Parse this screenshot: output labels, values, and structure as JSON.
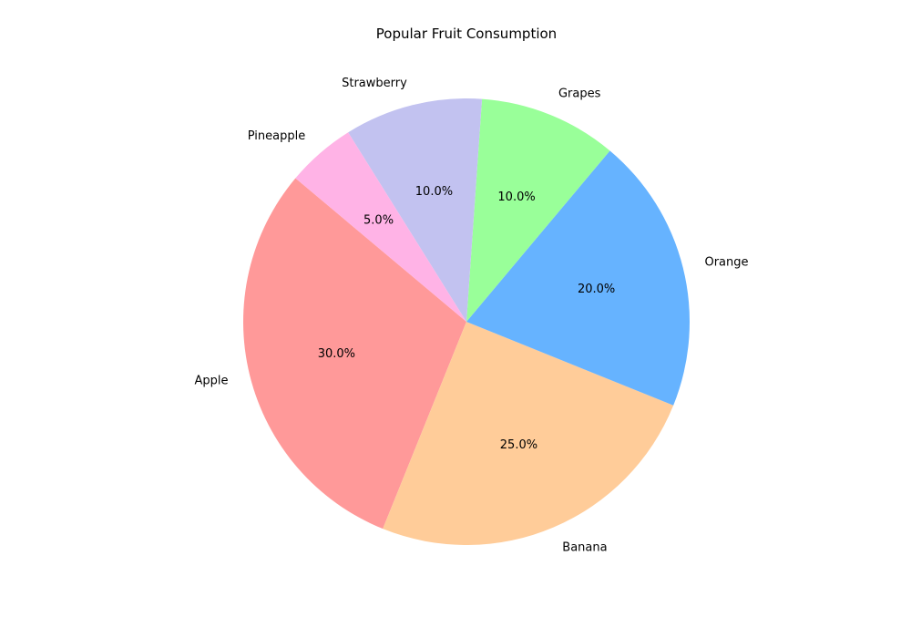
{
  "chart_data": {
    "type": "pie",
    "title": "Popular Fruit Consumption",
    "slices": [
      {
        "label": "Apple",
        "value": 30,
        "pct_label": "30.0%",
        "color": "#ff9999"
      },
      {
        "label": "Banana",
        "value": 25,
        "pct_label": "25.0%",
        "color": "#ffcc99"
      },
      {
        "label": "Orange",
        "value": 20,
        "pct_label": "20.0%",
        "color": "#66b3ff"
      },
      {
        "label": "Grapes",
        "value": 10,
        "pct_label": "10.0%",
        "color": "#99ff99"
      },
      {
        "label": "Strawberry",
        "value": 10,
        "pct_label": "10.0%",
        "color": "#c2c2f0"
      },
      {
        "label": "Pineapple",
        "value": 5,
        "pct_label": "5.0%",
        "color": "#ffb3e6"
      }
    ],
    "start_angle_deg": 140,
    "direction": "counterclockwise"
  }
}
